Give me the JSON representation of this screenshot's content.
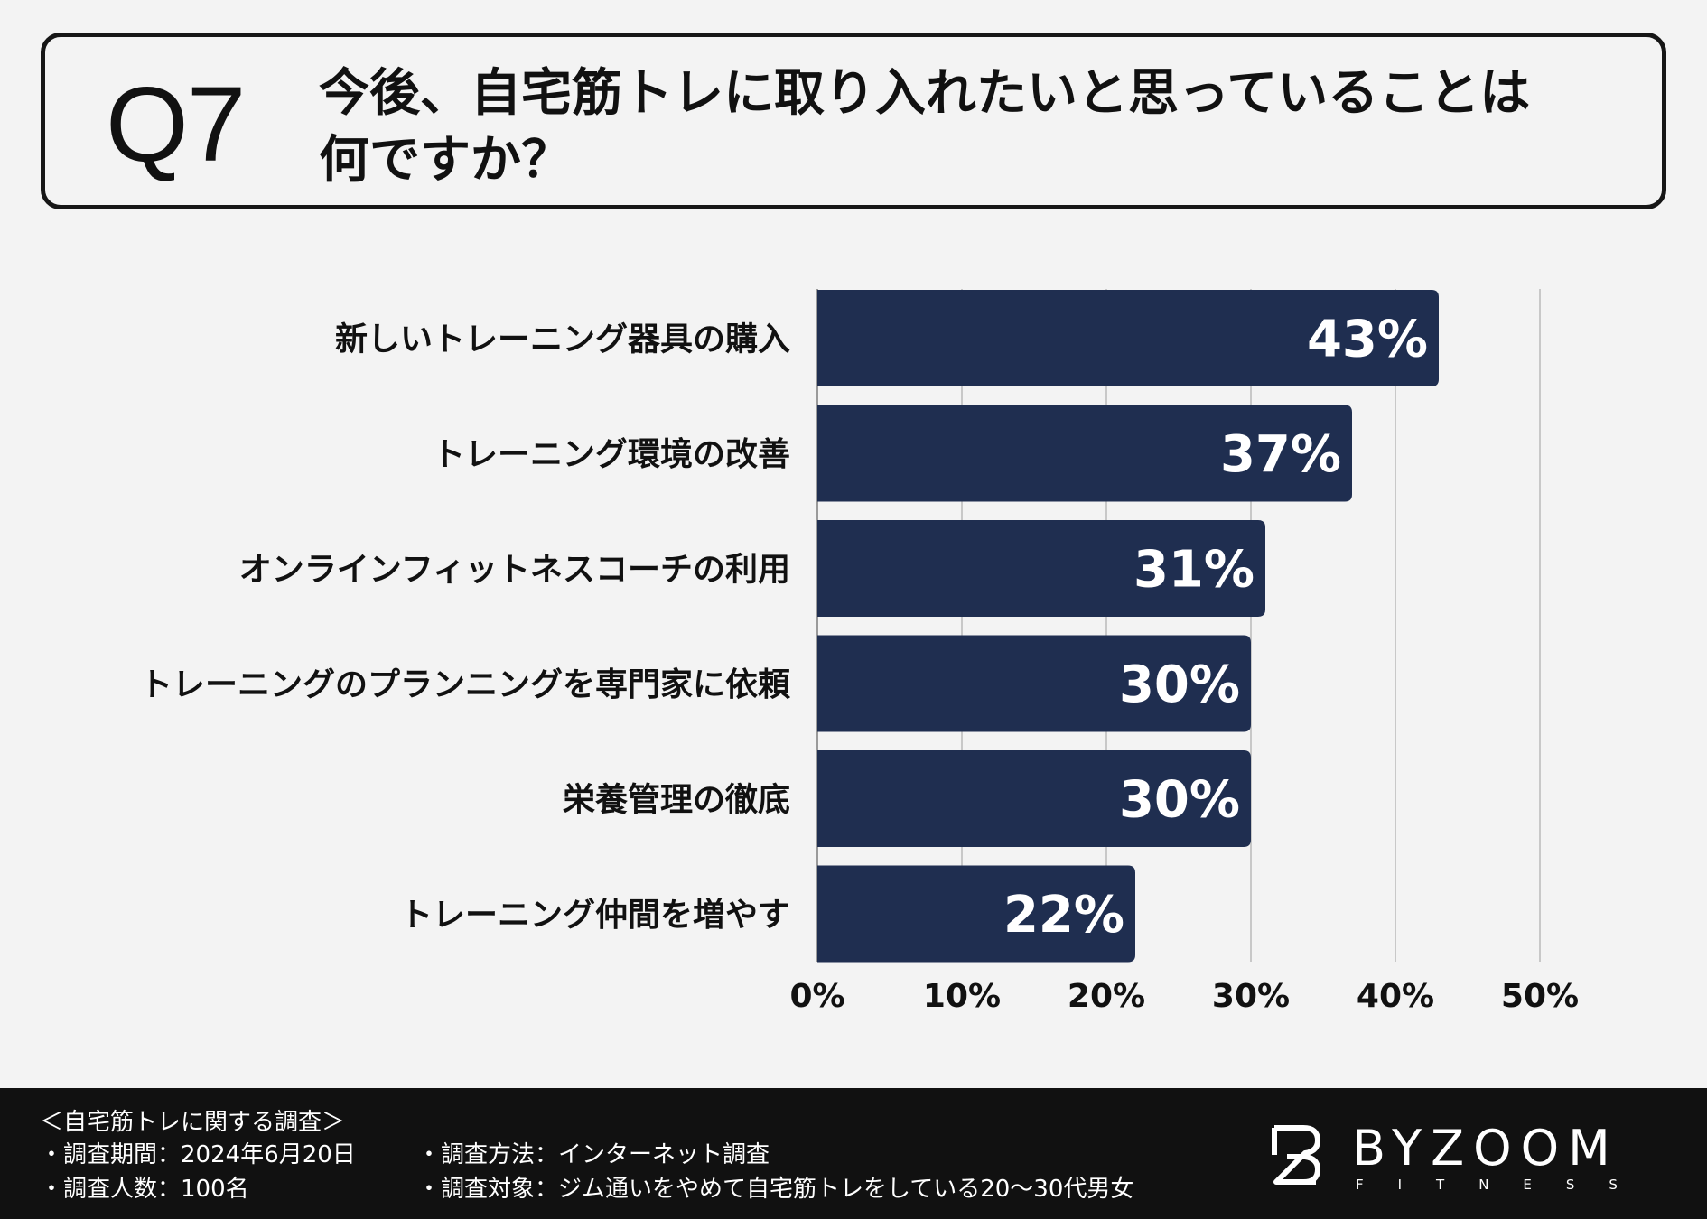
{
  "question": {
    "number": "Q7",
    "text_line1": "今後、自宅筋トレに取り入れたいと思っていることは",
    "text_line2": "何ですか？"
  },
  "chart_data": {
    "type": "bar",
    "orientation": "horizontal",
    "categories": [
      "新しいトレーニング器具の購入",
      "トレーニング環境の改善",
      "オンラインフィットネスコーチの利用",
      "トレーニングのプランニングを専門家に依頼",
      "栄養管理の徹底",
      "トレーニング仲間を増やす"
    ],
    "values": [
      43,
      37,
      31,
      30,
      30,
      22
    ],
    "value_labels": [
      "43%",
      "37%",
      "31%",
      "30%",
      "30%",
      "22%"
    ],
    "xlim": [
      0,
      50
    ],
    "xticks": [
      0,
      10,
      20,
      30,
      40,
      50
    ],
    "xtick_labels": [
      "0%",
      "10%",
      "20%",
      "30%",
      "40%",
      "50%"
    ],
    "grid": true,
    "bar_color": "#1f2e50",
    "title": "今後、自宅筋トレに取り入れたいと思っていることは何ですか？",
    "xlabel": "",
    "ylabel": ""
  },
  "footer": {
    "survey_title": "＜自宅筋トレに関する調査＞",
    "period": "・調査期間：2024年6月20日",
    "respondents": "・調査人数：100名",
    "method": "・調査方法：インターネット調査",
    "target": "・調査対象：ジム通いをやめて自宅筋トレをしている20〜30代男女"
  },
  "logo": {
    "name": "BYZOOM",
    "subtitle": "FITNESS",
    "icon": "byzoom-logo-icon"
  },
  "colors": {
    "background": "#f3f3f3",
    "bar": "#1f2e50",
    "footer": "#111111",
    "grid": "#c8c8c8"
  }
}
